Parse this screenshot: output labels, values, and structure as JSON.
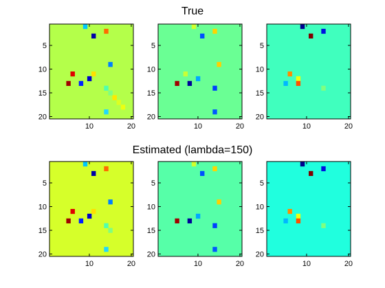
{
  "chart_data": [
    {
      "type": "heatmap",
      "title": "True",
      "panels": [
        {
          "background": "#b4ff4a",
          "cells": [
            {
              "row": 1,
              "col": 9,
              "color": "#00c8ff"
            },
            {
              "row": 2,
              "col": 14,
              "color": "#ff6a00"
            },
            {
              "row": 3,
              "col": 11,
              "color": "#0000a8"
            },
            {
              "row": 9,
              "col": 15,
              "color": "#0080ff"
            },
            {
              "row": 11,
              "col": 6,
              "color": "#e00000"
            },
            {
              "row": 11,
              "col": 11,
              "color": "#ffe000"
            },
            {
              "row": 12,
              "col": 10,
              "color": "#0000c8"
            },
            {
              "row": 13,
              "col": 5,
              "color": "#a00000"
            },
            {
              "row": 13,
              "col": 8,
              "color": "#0020ff"
            },
            {
              "row": 14,
              "col": 14,
              "color": "#50ffae"
            },
            {
              "row": 15,
              "col": 15,
              "color": "#80ff80"
            },
            {
              "row": 16,
              "col": 16,
              "color": "#ffe800"
            },
            {
              "row": 17,
              "col": 17,
              "color": "#dcff22"
            },
            {
              "row": 18,
              "col": 18,
              "color": "#ecff12"
            },
            {
              "row": 19,
              "col": 14,
              "color": "#20d8ff"
            }
          ]
        },
        {
          "background": "#6aff94",
          "cells": [
            {
              "row": 1,
              "col": 9,
              "color": "#d0ff2e"
            },
            {
              "row": 2,
              "col": 14,
              "color": "#ffd400"
            },
            {
              "row": 3,
              "col": 11,
              "color": "#0050ff"
            },
            {
              "row": 9,
              "col": 15,
              "color": "#ffd000"
            },
            {
              "row": 11,
              "col": 7,
              "color": "#c8ff36"
            },
            {
              "row": 12,
              "col": 10,
              "color": "#00a8ff"
            },
            {
              "row": 13,
              "col": 5,
              "color": "#a00000"
            },
            {
              "row": 13,
              "col": 8,
              "color": "#000098"
            },
            {
              "row": 14,
              "col": 14,
              "color": "#0040ff"
            },
            {
              "row": 19,
              "col": 14,
              "color": "#0058ff"
            }
          ]
        },
        {
          "background": "#40ffbe",
          "cells": [
            {
              "row": 1,
              "col": 9,
              "color": "#000090"
            },
            {
              "row": 2,
              "col": 14,
              "color": "#0010e0"
            },
            {
              "row": 3,
              "col": 11,
              "color": "#800000"
            },
            {
              "row": 11,
              "col": 6,
              "color": "#ff8a00"
            },
            {
              "row": 12,
              "col": 8,
              "color": "#ecff12"
            },
            {
              "row": 13,
              "col": 5,
              "color": "#00b8ff"
            },
            {
              "row": 13,
              "col": 8,
              "color": "#ff5000"
            },
            {
              "row": 14,
              "col": 14,
              "color": "#80ff80"
            }
          ]
        }
      ]
    },
    {
      "type": "heatmap",
      "title": "Estimated (lambda=150)",
      "panels": [
        {
          "background": "#d6ff2a",
          "cells": [
            {
              "row": 1,
              "col": 9,
              "color": "#00c8ff"
            },
            {
              "row": 2,
              "col": 14,
              "color": "#ff6a00"
            },
            {
              "row": 3,
              "col": 11,
              "color": "#0000a8"
            },
            {
              "row": 9,
              "col": 15,
              "color": "#0080ff"
            },
            {
              "row": 11,
              "col": 6,
              "color": "#e00000"
            },
            {
              "row": 11,
              "col": 11,
              "color": "#ffe000"
            },
            {
              "row": 12,
              "col": 10,
              "color": "#0000c8"
            },
            {
              "row": 13,
              "col": 5,
              "color": "#a00000"
            },
            {
              "row": 13,
              "col": 8,
              "color": "#0020ff"
            },
            {
              "row": 14,
              "col": 14,
              "color": "#50ffae"
            },
            {
              "row": 15,
              "col": 15,
              "color": "#80ff80"
            },
            {
              "row": 19,
              "col": 14,
              "color": "#20d8ff"
            }
          ]
        },
        {
          "background": "#56ffa8",
          "cells": [
            {
              "row": 1,
              "col": 9,
              "color": "#d0ff2e"
            },
            {
              "row": 2,
              "col": 14,
              "color": "#ffd400"
            },
            {
              "row": 3,
              "col": 11,
              "color": "#0050ff"
            },
            {
              "row": 9,
              "col": 15,
              "color": "#ffd000"
            },
            {
              "row": 12,
              "col": 10,
              "color": "#00a8ff"
            },
            {
              "row": 13,
              "col": 5,
              "color": "#a00000"
            },
            {
              "row": 13,
              "col": 8,
              "color": "#000098"
            },
            {
              "row": 14,
              "col": 14,
              "color": "#0040ff"
            },
            {
              "row": 19,
              "col": 14,
              "color": "#0058ff"
            }
          ]
        },
        {
          "background": "#20ffde",
          "cells": [
            {
              "row": 1,
              "col": 9,
              "color": "#000090"
            },
            {
              "row": 2,
              "col": 14,
              "color": "#0010e0"
            },
            {
              "row": 3,
              "col": 11,
              "color": "#800000"
            },
            {
              "row": 11,
              "col": 6,
              "color": "#ff8a00"
            },
            {
              "row": 12,
              "col": 8,
              "color": "#ecff12"
            },
            {
              "row": 13,
              "col": 5,
              "color": "#00b8ff"
            },
            {
              "row": 13,
              "col": 8,
              "color": "#ff5000"
            },
            {
              "row": 14,
              "col": 14,
              "color": "#80ff80"
            }
          ]
        }
      ],
      "axes": {
        "xticks": [
          10,
          20
        ],
        "yticks": [
          5,
          10,
          15,
          20
        ],
        "xlim": [
          0.5,
          20.5
        ],
        "ylim": [
          0.5,
          20.5
        ]
      }
    }
  ]
}
